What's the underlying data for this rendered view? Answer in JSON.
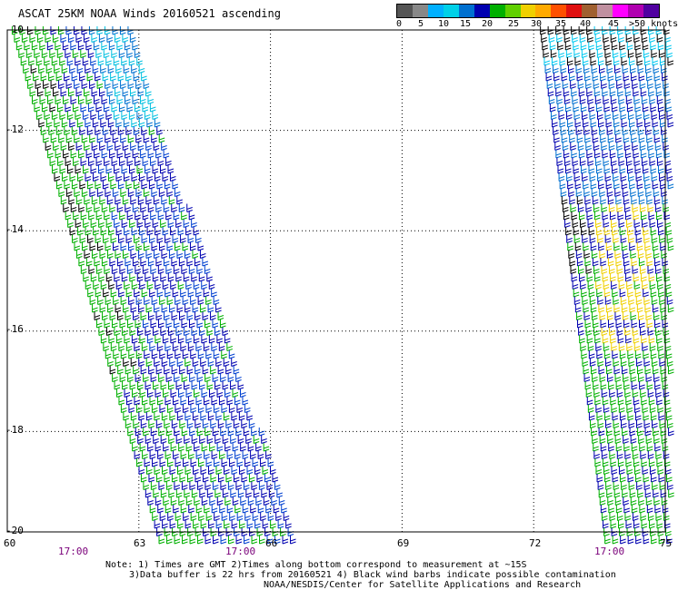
{
  "title": "ASCAT 25KM NOAA Winds 20160521 ascending",
  "legend": {
    "colors": [
      "#555555",
      "#888888",
      "#00b0ff",
      "#00d0e8",
      "#0070d0",
      "#0000b0",
      "#00b000",
      "#60d000",
      "#f0d000",
      "#ffaa00",
      "#ff5000",
      "#e01010",
      "#a06030",
      "#c090a0",
      "#ff00ff",
      "#b000b0",
      "#5000a0"
    ],
    "labels": [
      "0",
      "5",
      "10",
      "15",
      "20",
      "25",
      "30",
      "35",
      "40",
      "45",
      ">50 knots"
    ]
  },
  "axes": {
    "y_ticks": [
      "-10",
      "-12",
      "-14",
      "-16",
      "-18",
      "-20"
    ],
    "x_ticks": [
      "60",
      "63",
      "66",
      "69",
      "72",
      "75"
    ],
    "times": [
      "17:00",
      "17:00",
      "17:00"
    ]
  },
  "notes": {
    "line1": "Note: 1) Times are GMT 2)Times along bottom correspond to measurement at ~15S",
    "line2": "3)Data buffer is 22 hrs from 20160521 4) Black wind barbs indicate possible contamination",
    "line3": "NOAA/NESDIS/Center for Satellite Applications and Research"
  },
  "swaths": {
    "left": {
      "top_lon_range": [
        60.0,
        62.8
      ],
      "bottom_lon_range": [
        63.3,
        66.5
      ]
    },
    "right": {
      "lon_range": [
        72.0,
        75.0
      ]
    }
  }
}
